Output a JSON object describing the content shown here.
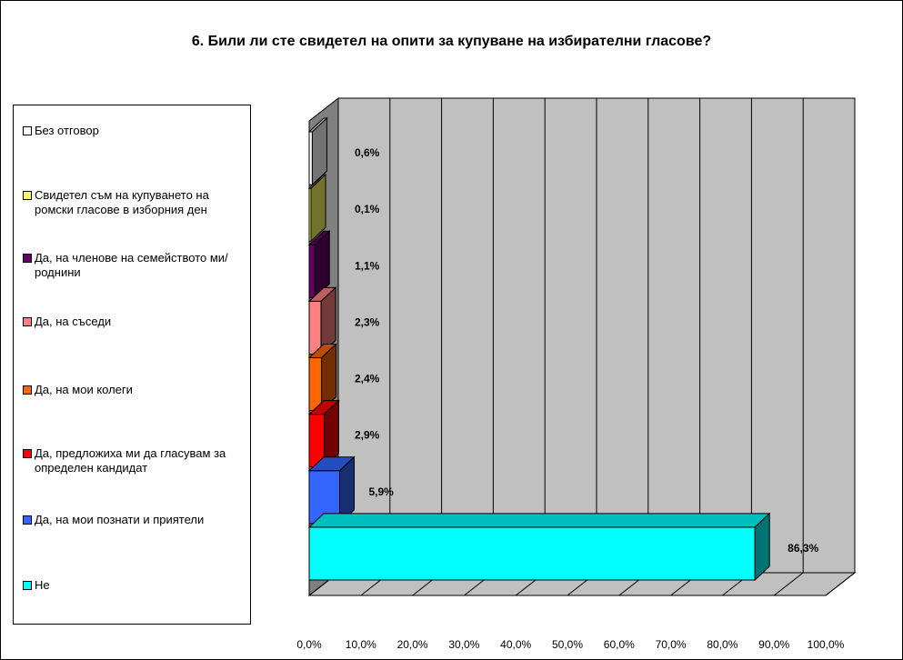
{
  "chart_data": {
    "type": "bar",
    "orientation": "horizontal",
    "three_d": true,
    "title": "6. Били ли сте свидетел на опити за купуване на избирателни гласове?",
    "categories": [
      "Без отговор",
      "Свидетел съм на купуването на ромски гласове в изборния ден",
      "Да, на членове на семейството ми/ роднини",
      "Да, на съседи",
      "Да, на мои колеги",
      "Да, предложиха ми да гласувам за определен кандидат",
      "Да, на мои познати и приятели",
      "Не"
    ],
    "values": [
      0.6,
      0.1,
      1.1,
      2.3,
      2.4,
      2.9,
      5.9,
      86.3
    ],
    "value_labels": [
      "0,6%",
      "0,1%",
      "1,1%",
      "2,3%",
      "2,4%",
      "2,9%",
      "5,9%",
      "86,3%"
    ],
    "colors": [
      "#ffffff",
      "#ffff66",
      "#660066",
      "#ff8080",
      "#ff6600",
      "#ff0000",
      "#3366ff",
      "#00ffff"
    ],
    "xlim": [
      0,
      100
    ],
    "x_ticks": [
      "0,0%",
      "10,0%",
      "20,0%",
      "30,0%",
      "40,0%",
      "50,0%",
      "60,0%",
      "70,0%",
      "80,0%",
      "90,0%",
      "100,0%"
    ],
    "grid": true,
    "legend_position": "left"
  }
}
